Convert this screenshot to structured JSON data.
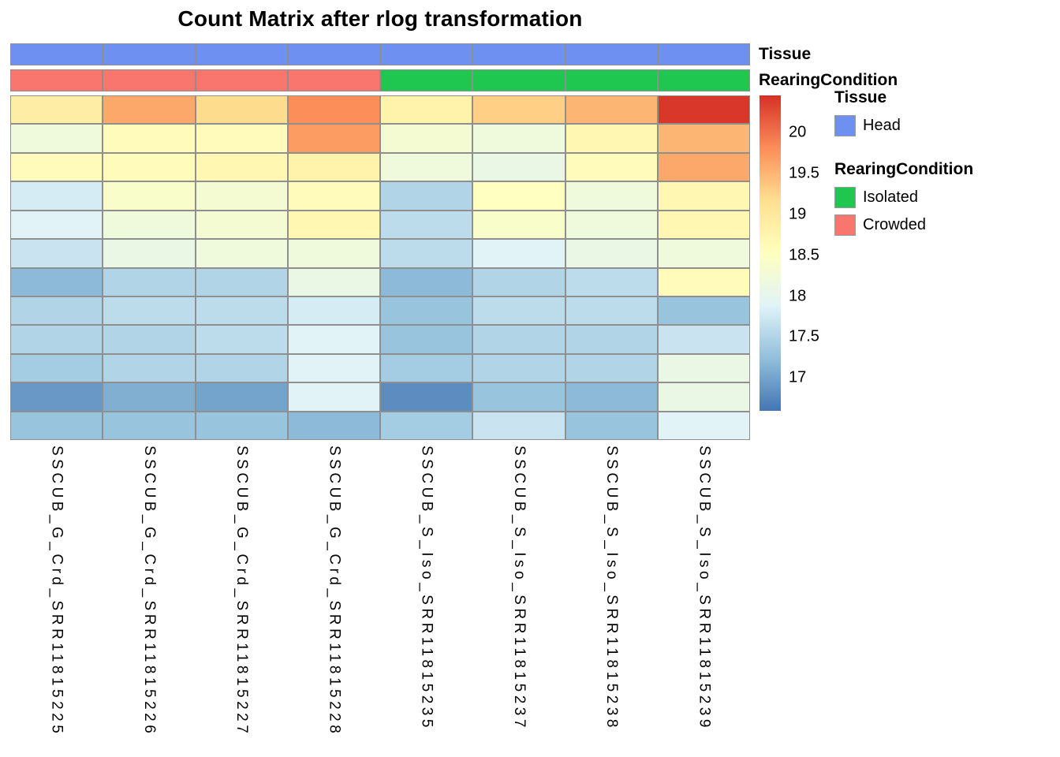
{
  "title": "Count Matrix after rlog transformation",
  "annotation_colors": {
    "Head": "#6D90F1",
    "Isolated": "#1FC64F",
    "Crowded": "#F8766D"
  },
  "colorbar": {
    "ticks": [
      20,
      19.5,
      19,
      18.5,
      18,
      17.5,
      17
    ],
    "vmin": 16.6,
    "vmax": 20.45,
    "stops": [
      "#4575b4",
      "#91bfdb",
      "#e0f3f8",
      "#ffffbf",
      "#fee090",
      "#fc8d59",
      "#d73027"
    ]
  },
  "legend": {
    "sections": [
      {
        "title": "Tissue",
        "items": [
          {
            "label": "Head",
            "color": "#6D90F1"
          }
        ]
      },
      {
        "title": "RearingCondition",
        "items": [
          {
            "label": "Isolated",
            "color": "#1FC64F"
          },
          {
            "label": "Crowded",
            "color": "#F8766D"
          }
        ]
      }
    ]
  },
  "chart_data": {
    "type": "heatmap",
    "title": "Count Matrix after rlog transformation",
    "legend_position": "right",
    "row_labels_shown": false,
    "annotation_order": [
      "Tissue",
      "RearingCondition"
    ],
    "columns": [
      "SSCUB_G_Crd_SRR11815225",
      "SSCUB_G_Crd_SRR11815226",
      "SSCUB_G_Crd_SRR11815227",
      "SSCUB_G_Crd_SRR11815228",
      "SSCUB_S_Iso_SRR11815235",
      "SSCUB_S_Iso_SRR11815237",
      "SSCUB_S_Iso_SRR11815238",
      "SSCUB_S_Iso_SRR11815239"
    ],
    "col_annotations": {
      "Tissue": [
        "Head",
        "Head",
        "Head",
        "Head",
        "Head",
        "Head",
        "Head",
        "Head"
      ],
      "RearingCondition": [
        "Crowded",
        "Crowded",
        "Crowded",
        "Crowded",
        "Isolated",
        "Isolated",
        "Isolated",
        "Isolated"
      ]
    },
    "value_range": [
      16.6,
      20.45
    ],
    "colormap_stops": [
      "#4575b4",
      "#91bfdb",
      "#e0f3f8",
      "#ffffbf",
      "#fee090",
      "#fc8d59",
      "#d73027"
    ],
    "values": [
      [
        18.9,
        19.6,
        19.2,
        19.8,
        18.8,
        19.3,
        19.5,
        20.4
      ],
      [
        18.2,
        18.6,
        18.6,
        19.7,
        18.3,
        18.2,
        18.7,
        19.5
      ],
      [
        18.6,
        18.6,
        18.7,
        18.8,
        18.2,
        18.1,
        18.6,
        19.6
      ],
      [
        17.8,
        18.4,
        18.3,
        18.6,
        17.5,
        18.5,
        18.2,
        18.7
      ],
      [
        17.9,
        18.2,
        18.3,
        18.7,
        17.6,
        18.4,
        18.2,
        18.7
      ],
      [
        17.7,
        18.1,
        18.2,
        18.2,
        17.6,
        17.9,
        18.1,
        18.2
      ],
      [
        17.2,
        17.5,
        17.5,
        18.1,
        17.2,
        17.5,
        17.6,
        18.6
      ],
      [
        17.5,
        17.6,
        17.6,
        17.8,
        17.3,
        17.6,
        17.6,
        17.3
      ],
      [
        17.5,
        17.5,
        17.6,
        17.9,
        17.3,
        17.5,
        17.5,
        17.7
      ],
      [
        17.4,
        17.5,
        17.5,
        17.9,
        17.4,
        17.5,
        17.5,
        18.1
      ],
      [
        16.9,
        17.1,
        17.0,
        17.9,
        16.8,
        17.3,
        17.2,
        18.1
      ],
      [
        17.3,
        17.3,
        17.3,
        17.2,
        17.4,
        17.7,
        17.3,
        17.9
      ]
    ]
  }
}
